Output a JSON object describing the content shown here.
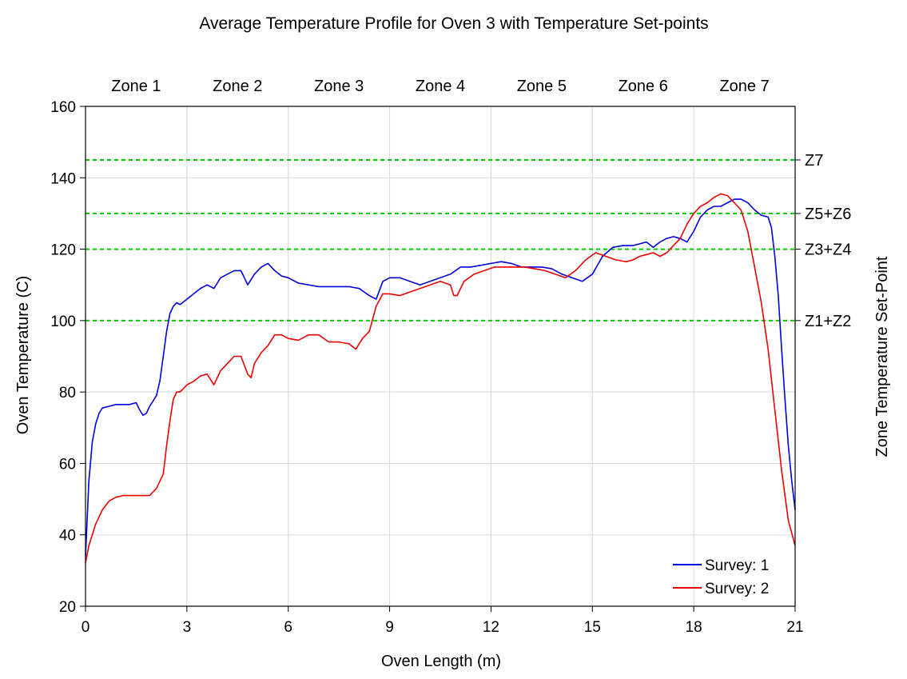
{
  "chart_data": {
    "type": "line",
    "title": "Average Temperature Profile for Oven 3 with Temperature Set-points",
    "xlabel": "Oven Length (m)",
    "ylabel": "Oven Temperature (C)",
    "ylabel_right": "Zone Temperature Set-Point",
    "xlim": [
      0,
      21
    ],
    "ylim": [
      20,
      160
    ],
    "x_ticks": [
      0,
      3,
      6,
      9,
      12,
      15,
      18,
      21
    ],
    "y_ticks": [
      20,
      40,
      60,
      80,
      100,
      120,
      140,
      160
    ],
    "grid": true,
    "legend_position": "bottom-right",
    "zones": [
      {
        "label": "Zone 1",
        "center": 1.5
      },
      {
        "label": "Zone 2",
        "center": 4.5
      },
      {
        "label": "Zone 3",
        "center": 7.5
      },
      {
        "label": "Zone 4",
        "center": 10.5
      },
      {
        "label": "Zone 5",
        "center": 13.5
      },
      {
        "label": "Zone 6",
        "center": 16.5
      },
      {
        "label": "Zone 7",
        "center": 19.5
      }
    ],
    "setpoints": [
      {
        "label": "Z7",
        "value": 145
      },
      {
        "label": "Z5+Z6",
        "value": 130
      },
      {
        "label": "Z3+Z4",
        "value": 120
      },
      {
        "label": "Z1+Z2",
        "value": 100
      }
    ],
    "setpoint_color": "#00cc00",
    "series": [
      {
        "name": "Survey: 1",
        "color": "#0000e0",
        "x": [
          0,
          0.1,
          0.2,
          0.3,
          0.4,
          0.5,
          0.7,
          0.9,
          1.1,
          1.3,
          1.5,
          1.6,
          1.7,
          1.8,
          1.9,
          2.0,
          2.1,
          2.2,
          2.3,
          2.4,
          2.5,
          2.6,
          2.7,
          2.8,
          3.0,
          3.2,
          3.4,
          3.6,
          3.8,
          4.0,
          4.2,
          4.4,
          4.6,
          4.8,
          5.0,
          5.2,
          5.4,
          5.6,
          5.8,
          6.0,
          6.3,
          6.6,
          6.9,
          7.2,
          7.5,
          7.8,
          8.1,
          8.4,
          8.6,
          8.8,
          9.0,
          9.3,
          9.6,
          9.9,
          10.2,
          10.5,
          10.8,
          11.1,
          11.4,
          11.7,
          12.0,
          12.3,
          12.6,
          12.9,
          13.2,
          13.5,
          13.8,
          14.1,
          14.4,
          14.7,
          15.0,
          15.3,
          15.6,
          15.9,
          16.2,
          16.4,
          16.6,
          16.8,
          17.0,
          17.2,
          17.4,
          17.6,
          17.8,
          18.0,
          18.2,
          18.4,
          18.6,
          18.8,
          19.0,
          19.2,
          19.4,
          19.6,
          19.8,
          20.0,
          20.2,
          20.3,
          20.4,
          20.5,
          20.6,
          20.7,
          20.8,
          20.9,
          21.0
        ],
        "y": [
          34,
          55,
          66,
          71,
          74,
          75.5,
          76,
          76.5,
          76.5,
          76.5,
          77,
          75,
          73.5,
          74,
          76,
          77.5,
          79,
          83,
          90,
          97,
          102,
          104,
          105,
          104.5,
          106,
          107.5,
          109,
          110,
          109,
          112,
          113,
          114,
          114,
          110,
          113,
          115,
          116,
          114,
          112.5,
          112,
          110.5,
          110,
          109.5,
          109.5,
          109.5,
          109.5,
          109,
          107,
          106,
          111,
          112,
          112,
          111,
          110,
          111,
          112,
          113,
          115,
          115,
          115.5,
          116,
          116.5,
          116,
          115,
          115,
          115,
          114.5,
          113,
          112,
          111,
          113,
          118,
          120.5,
          121,
          121,
          121.5,
          122,
          120.5,
          122,
          123,
          123.5,
          123,
          122,
          125,
          129,
          131,
          132,
          132,
          133,
          134,
          134,
          133,
          131,
          129.5,
          129,
          126,
          118,
          107,
          92,
          78,
          65,
          55,
          47
        ]
      },
      {
        "name": "Survey: 2",
        "color": "#ee0000",
        "x": [
          0,
          0.1,
          0.2,
          0.3,
          0.4,
          0.5,
          0.7,
          0.9,
          1.1,
          1.3,
          1.5,
          1.7,
          1.9,
          2.1,
          2.2,
          2.3,
          2.4,
          2.5,
          2.6,
          2.7,
          2.8,
          3.0,
          3.2,
          3.4,
          3.6,
          3.8,
          4.0,
          4.2,
          4.4,
          4.6,
          4.8,
          4.9,
          5.0,
          5.2,
          5.4,
          5.6,
          5.8,
          6.0,
          6.3,
          6.6,
          6.9,
          7.2,
          7.5,
          7.8,
          8.0,
          8.2,
          8.4,
          8.6,
          8.8,
          9.0,
          9.3,
          9.6,
          9.9,
          10.2,
          10.5,
          10.8,
          10.9,
          11.0,
          11.2,
          11.5,
          11.8,
          12.1,
          12.4,
          12.7,
          13.0,
          13.3,
          13.6,
          13.9,
          14.2,
          14.5,
          14.8,
          15.1,
          15.4,
          15.7,
          16.0,
          16.2,
          16.4,
          16.6,
          16.8,
          17.0,
          17.2,
          17.4,
          17.6,
          17.8,
          18.0,
          18.2,
          18.4,
          18.6,
          18.8,
          19.0,
          19.2,
          19.4,
          19.6,
          19.8,
          20.0,
          20.2,
          20.4,
          20.6,
          20.8,
          21.0
        ],
        "y": [
          32,
          37,
          40,
          43,
          45,
          47,
          49.5,
          50.5,
          51,
          51,
          51,
          51,
          51,
          53,
          55,
          57,
          65,
          72,
          78,
          80,
          80,
          82,
          83,
          84.5,
          85,
          82,
          86,
          88,
          90,
          90,
          85,
          84,
          88,
          91,
          93,
          96,
          96,
          95,
          94.5,
          96,
          96,
          94,
          94,
          93.5,
          92,
          95,
          97,
          104,
          107.5,
          107.5,
          107,
          108,
          109,
          110,
          111,
          110,
          107,
          107,
          111,
          113,
          114,
          115,
          115,
          115,
          115,
          114.5,
          114,
          113,
          112,
          114,
          117,
          119,
          118,
          117,
          116.5,
          117,
          118,
          118.5,
          119,
          118,
          119,
          121,
          123,
          127,
          130,
          132,
          133,
          134.5,
          135.5,
          135,
          133,
          131,
          125,
          115,
          105,
          92,
          75,
          58,
          44,
          37
        ]
      }
    ]
  }
}
